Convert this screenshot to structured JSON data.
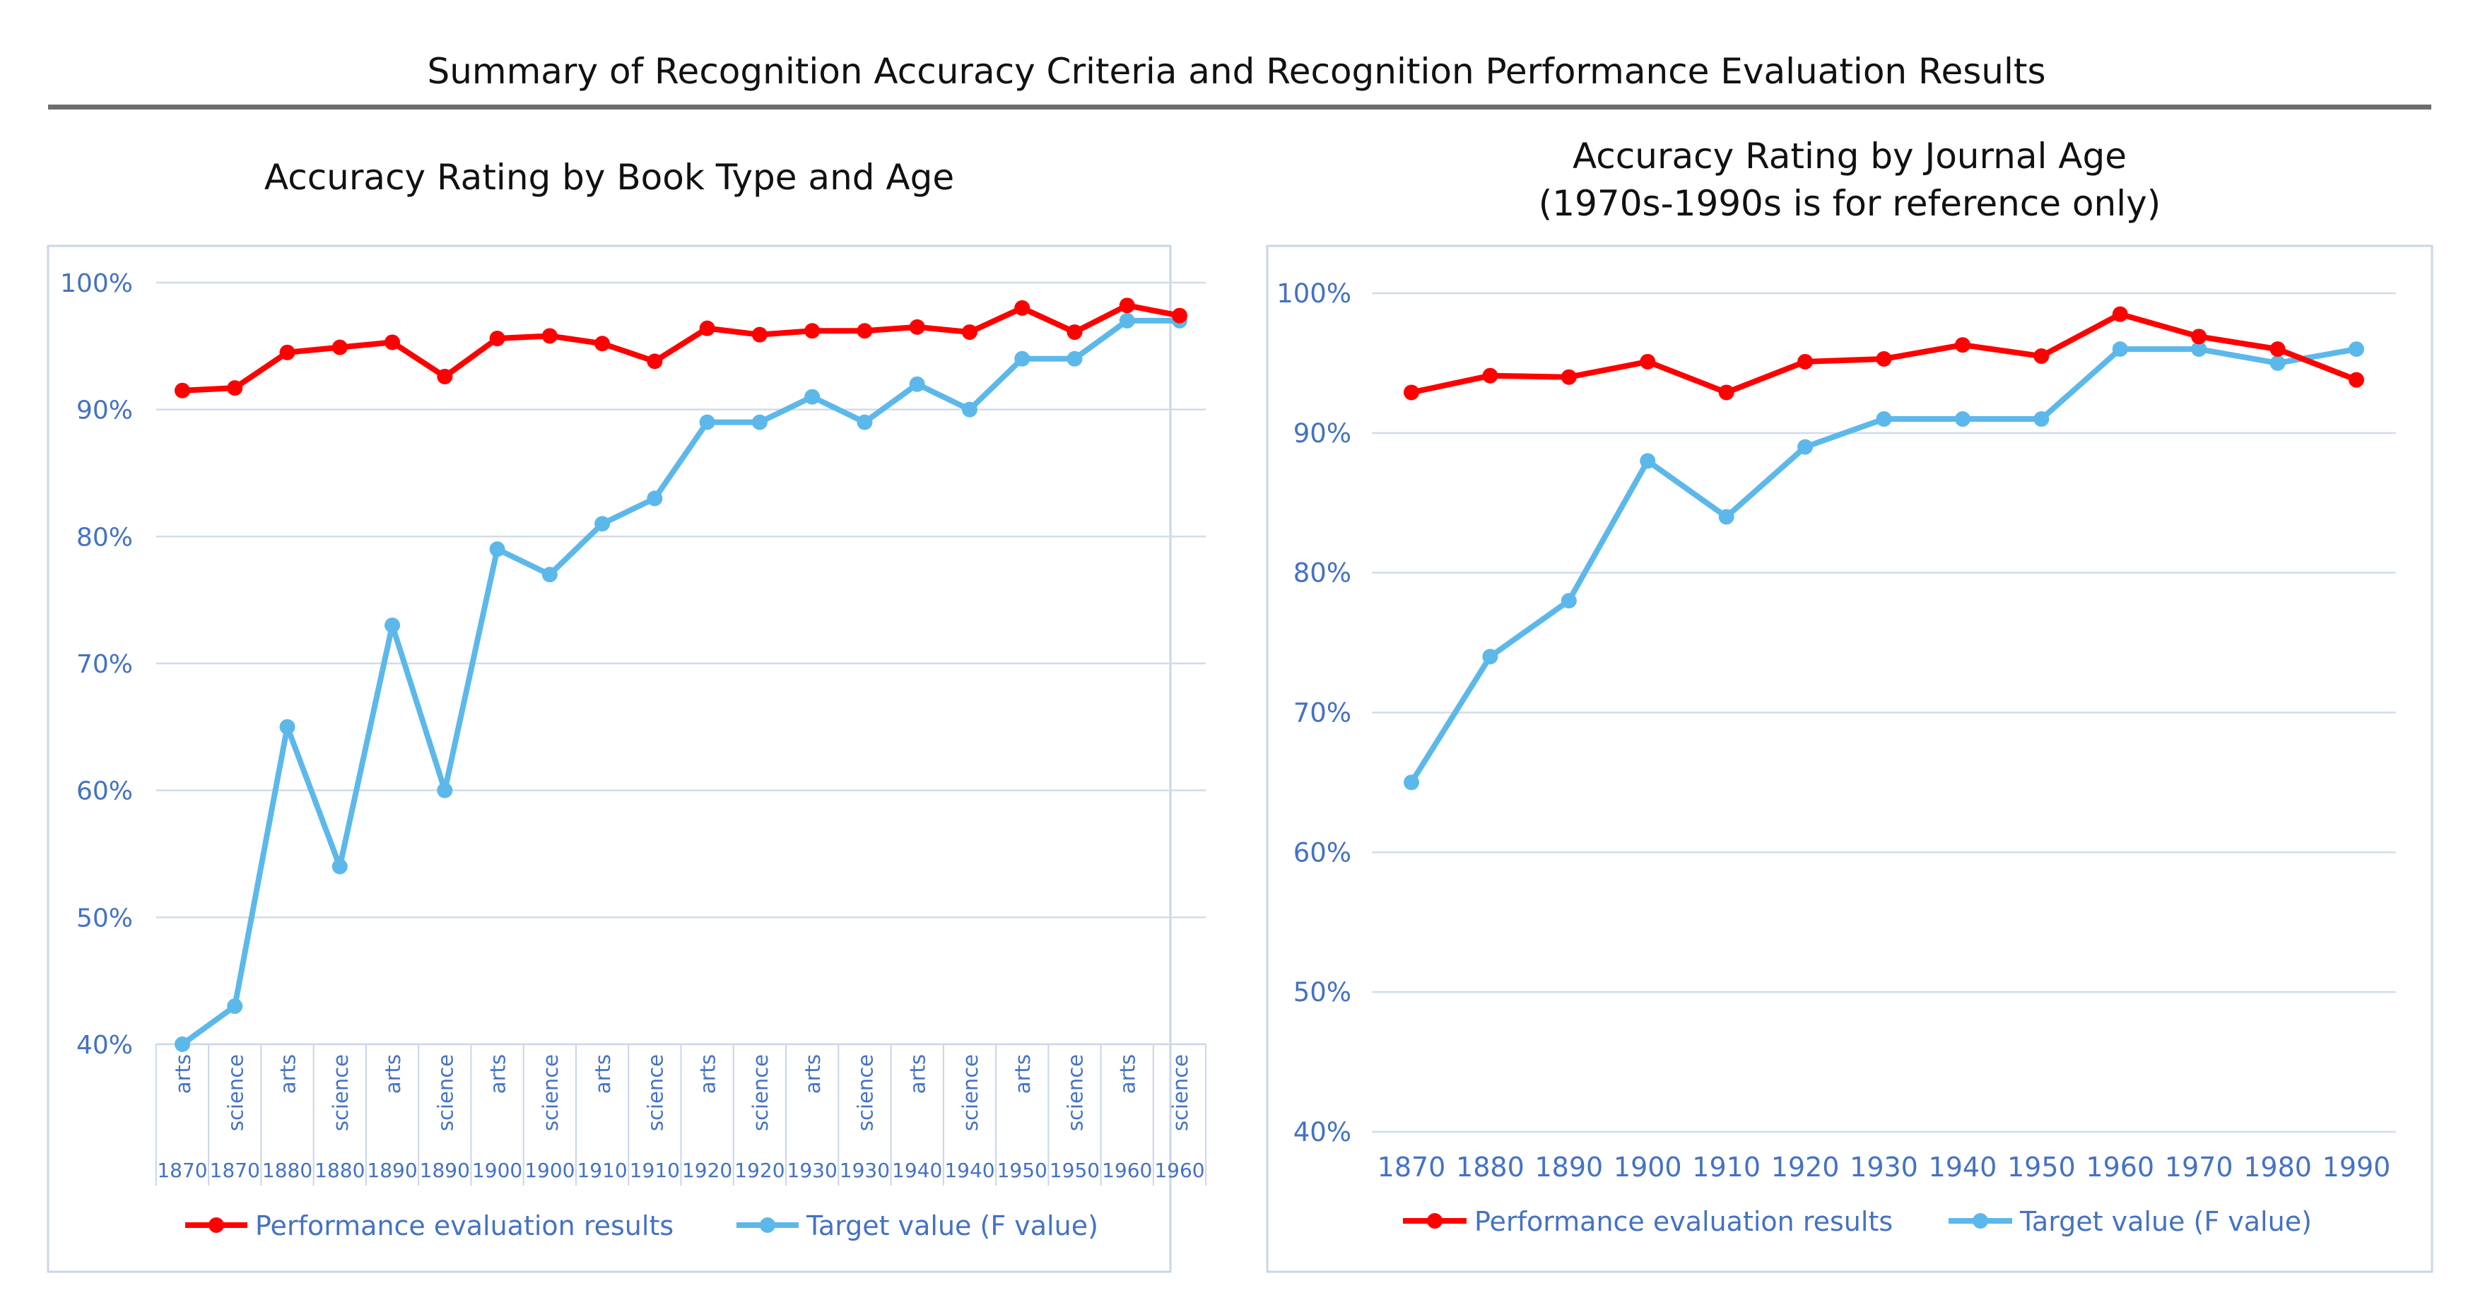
{
  "page": {
    "title": "Summary of Recognition Accuracy Criteria and Recognition Performance Evaluation Results"
  },
  "chart_data": [
    {
      "type": "line",
      "title": "Accuracy Rating by Book Type and Age",
      "subtitle": "",
      "categories": [
        "arts 1870",
        "science 1870",
        "arts 1880",
        "science 1880",
        "arts 1890",
        "science 1890",
        "arts 1900",
        "science 1900",
        "arts 1910",
        "science 1910",
        "arts 1920",
        "science 1920",
        "arts 1930",
        "science 1930",
        "arts 1940",
        "science 1940",
        "arts 1950",
        "science 1950",
        "arts 1960",
        "science 1960"
      ],
      "category_levels": {
        "type": [
          "arts",
          "science",
          "arts",
          "science",
          "arts",
          "science",
          "arts",
          "science",
          "arts",
          "science",
          "arts",
          "science",
          "arts",
          "science",
          "arts",
          "science",
          "arts",
          "science",
          "arts",
          "science"
        ],
        "year": [
          "1870",
          "1870",
          "1880",
          "1880",
          "1890",
          "1890",
          "1900",
          "1900",
          "1910",
          "1910",
          "1920",
          "1920",
          "1930",
          "1930",
          "1940",
          "1940",
          "1950",
          "1950",
          "1960",
          "1960"
        ]
      },
      "yticks": [
        "40%",
        "50%",
        "60%",
        "70%",
        "80%",
        "90%",
        "100%"
      ],
      "ylim": [
        40,
        100
      ],
      "grid": true,
      "legend_position": "bottom",
      "series": [
        {
          "name": "Performance evaluation results",
          "color": "#ff0000",
          "values": [
            91.5,
            91.7,
            94.5,
            94.9,
            95.3,
            92.6,
            95.6,
            95.8,
            95.2,
            93.8,
            96.4,
            95.9,
            96.2,
            96.2,
            96.5,
            96.1,
            98.0,
            96.1,
            98.2,
            97.4
          ]
        },
        {
          "name": "Target value (F value)",
          "color": "#5cb8ea",
          "values": [
            40,
            43,
            65,
            54,
            73,
            60,
            79,
            77,
            81,
            83,
            89,
            89,
            91,
            89,
            92,
            90,
            94,
            94,
            97,
            97
          ]
        }
      ]
    },
    {
      "type": "line",
      "title": "Accuracy Rating by Journal Age",
      "subtitle": "(1970s-1990s is for reference only)",
      "categories": [
        "1870",
        "1880",
        "1890",
        "1900",
        "1910",
        "1920",
        "1930",
        "1940",
        "1950",
        "1960",
        "1970",
        "1980",
        "1990"
      ],
      "yticks": [
        "40%",
        "50%",
        "60%",
        "70%",
        "80%",
        "90%",
        "100%"
      ],
      "ylim": [
        40,
        100
      ],
      "grid": true,
      "legend_position": "bottom",
      "series": [
        {
          "name": "Performance evaluation results",
          "color": "#ff0000",
          "values": [
            92.9,
            94.1,
            94.0,
            95.1,
            92.9,
            95.1,
            95.3,
            96.3,
            95.5,
            98.5,
            96.9,
            96.0,
            93.8
          ]
        },
        {
          "name": "Target value (F value)",
          "color": "#5cb8ea",
          "values": [
            65,
            74,
            78,
            88,
            84,
            89,
            91,
            91,
            91,
            96,
            96,
            95,
            96
          ]
        }
      ]
    }
  ]
}
